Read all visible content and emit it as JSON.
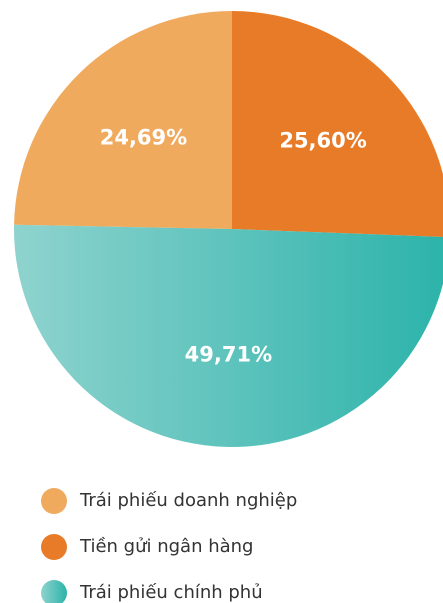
{
  "chart_data": {
    "type": "pie",
    "categories": [
      "Trái phiếu doanh nghiệp",
      "Tiền gửi ngân hàng",
      "Trái phiếu chính phủ"
    ],
    "values": [
      24.69,
      25.6,
      49.71
    ],
    "value_labels": [
      "24,69%",
      "25,60%",
      "49,71%"
    ],
    "colors": [
      "#f0aa5e",
      "#e87b27",
      "#33b5ad"
    ],
    "legend": "bottom"
  }
}
